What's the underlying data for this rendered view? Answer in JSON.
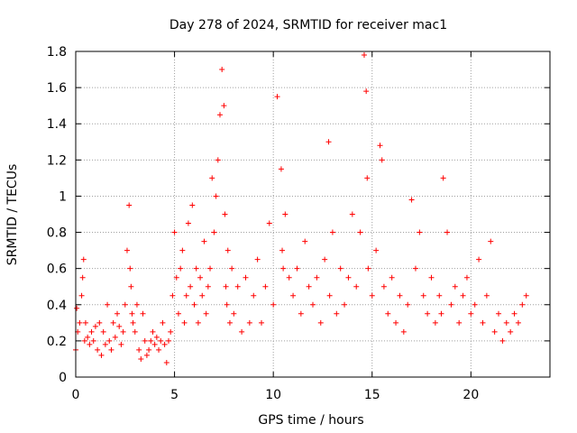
{
  "chart_data": {
    "type": "scatter",
    "title": "Day 278 of 2024, SRMTID for receiver mac1",
    "xlabel": "GPS time / hours",
    "ylabel": "SRMTID / TECUs",
    "xlim": [
      0,
      24
    ],
    "ylim": [
      0,
      1.8
    ],
    "xticks": [
      0,
      5,
      10,
      15,
      20
    ],
    "yticks": [
      0,
      0.2,
      0.4,
      0.6,
      0.8,
      1,
      1.2,
      1.4,
      1.6,
      1.8
    ],
    "grid": true,
    "marker": "+",
    "color": "#ff0000",
    "series": [
      {
        "name": "SRMTID",
        "x": [
          0.0,
          0.1,
          0.2,
          0.3,
          0.35,
          0.4,
          0.45,
          0.5,
          0.6,
          0.7,
          0.8,
          0.9,
          1.0,
          1.1,
          1.2,
          1.3,
          1.4,
          1.5,
          1.6,
          1.7,
          1.8,
          1.9,
          2.0,
          2.1,
          2.2,
          2.3,
          2.4,
          2.5,
          2.6,
          2.7,
          2.75,
          2.8,
          2.85,
          2.9,
          3.0,
          3.1,
          3.2,
          3.3,
          3.4,
          3.5,
          3.6,
          3.7,
          3.8,
          3.9,
          4.0,
          4.1,
          4.2,
          4.3,
          4.4,
          4.5,
          4.6,
          4.7,
          4.8,
          4.9,
          5.0,
          5.1,
          5.2,
          5.3,
          5.4,
          5.5,
          5.6,
          5.7,
          5.8,
          5.9,
          6.0,
          6.1,
          6.2,
          6.3,
          6.4,
          6.5,
          6.6,
          6.7,
          6.8,
          6.9,
          7.0,
          7.1,
          7.2,
          7.3,
          7.4,
          7.5,
          7.55,
          7.6,
          7.65,
          7.7,
          7.8,
          7.9,
          8.0,
          8.2,
          8.4,
          8.6,
          8.8,
          9.0,
          9.2,
          9.4,
          9.6,
          9.8,
          10.0,
          10.2,
          10.4,
          10.45,
          10.5,
          10.6,
          10.8,
          11.0,
          11.2,
          11.4,
          11.6,
          11.8,
          12.0,
          12.2,
          12.4,
          12.6,
          12.8,
          12.85,
          13.0,
          13.2,
          13.4,
          13.6,
          13.8,
          14.0,
          14.2,
          14.4,
          14.6,
          14.7,
          14.75,
          14.8,
          15.0,
          15.2,
          15.4,
          15.5,
          15.6,
          15.8,
          16.0,
          16.2,
          16.4,
          16.6,
          16.8,
          17.0,
          17.2,
          17.4,
          17.6,
          17.8,
          18.0,
          18.2,
          18.4,
          18.5,
          18.6,
          18.8,
          19.0,
          19.2,
          19.4,
          19.6,
          19.8,
          20.0,
          20.2,
          20.4,
          20.6,
          20.8,
          21.0,
          21.2,
          21.4,
          21.6,
          21.8,
          22.0,
          22.2,
          22.4,
          22.6,
          22.8,
          0.05,
          0.15,
          0.25,
          0.3,
          0.45,
          0.55,
          0.65,
          0.2,
          0.3,
          0.22,
          0.18,
          0.25,
          0.2,
          0.28,
          0.15,
          0.3,
          0.12,
          0.25,
          0.18,
          0.4,
          0.2,
          0.15,
          0.3,
          0.22,
          0.35,
          0.28,
          0.18,
          0.25,
          0.4,
          0.7,
          0.95,
          0.6,
          0.5,
          0.35,
          0.3,
          0.25,
          0.4,
          0.15,
          0.1,
          0.35,
          0.2,
          0.12,
          0.15,
          0.2,
          0.25,
          0.18,
          0.22,
          0.15,
          0.2,
          0.3,
          0.18,
          0.08,
          0.2,
          0.25,
          0.45,
          0.8,
          0.55,
          0.35,
          0.6,
          0.7,
          0.3,
          0.45,
          0.85,
          0.5,
          0.95,
          0.4,
          0.6,
          0.3,
          0.55,
          0.45,
          0.75,
          0.35,
          0.5,
          0.6,
          1.1,
          0.8,
          1.0,
          1.2,
          1.45,
          1.7,
          1.5,
          0.9,
          0.5,
          0.4,
          0.7,
          0.3,
          0.6,
          0.35,
          0.5,
          0.25,
          0.55,
          0.3,
          0.45,
          0.65,
          0.3,
          0.5,
          0.85,
          0.4,
          1.55,
          1.15,
          0.7,
          0.6,
          0.9,
          0.55,
          0.45,
          0.6,
          0.35,
          0.75,
          0.5,
          0.4,
          0.55,
          0.3,
          0.65,
          1.3,
          0.45,
          0.8,
          0.35,
          0.6,
          0.4,
          0.55,
          0.9,
          0.5,
          0.8,
          1.78,
          1.58,
          1.1,
          0.6,
          0.45,
          0.7,
          1.28,
          1.2,
          0.5,
          0.35,
          0.55,
          0.3,
          0.45,
          0.25,
          0.4,
          0.98,
          0.6,
          0.8,
          0.45,
          0.35,
          0.55,
          0.3,
          0.45,
          0.35,
          1.1,
          0.8,
          0.4,
          0.5,
          0.3,
          0.45,
          0.55,
          0.35,
          0.4,
          0.65,
          0.3,
          0.45,
          0.75,
          0.25,
          0.35,
          0.2,
          0.3,
          0.25,
          0.35,
          0.3,
          0.4,
          0.45,
          0.38
        ]
      }
    ]
  }
}
